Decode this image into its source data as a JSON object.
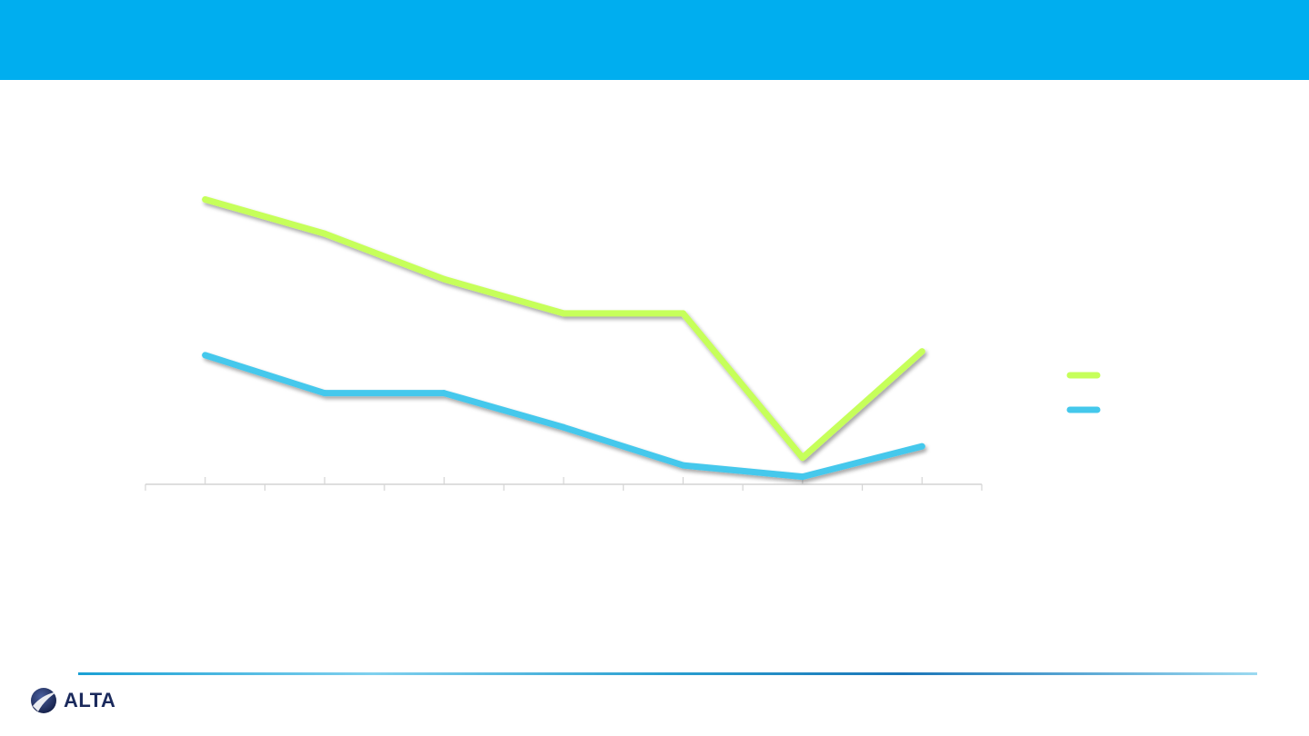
{
  "header": {
    "color": "#00AEEF"
  },
  "logo": {
    "text": "ALTA",
    "icon": "globe-swoosh-icon",
    "color": "#1B2A5C"
  },
  "chart_data": {
    "type": "line",
    "title": "",
    "xlabel": "",
    "ylabel": "",
    "categories": [
      "",
      "",
      "",
      "",
      "",
      "",
      ""
    ],
    "ylim": [
      0,
      100
    ],
    "grid": false,
    "legend": "right",
    "series": [
      {
        "color": "#C6FF5A",
        "values": [
          75,
          66,
          54,
          45,
          45,
          7,
          35
        ]
      },
      {
        "color": "#44C8EC",
        "values": [
          34,
          24,
          24,
          15,
          5,
          2,
          10
        ]
      }
    ]
  }
}
